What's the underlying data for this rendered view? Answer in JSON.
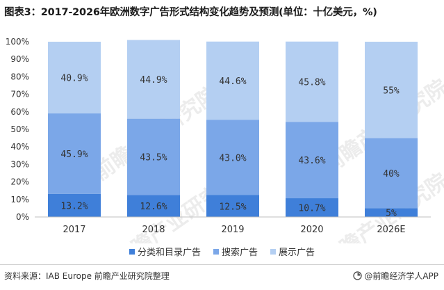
{
  "title": "图表3：2017-2026年欧洲数字广告形式结构变化趋势及预测(单位：十亿美元，%)",
  "chart_data": {
    "type": "bar",
    "stacked": true,
    "percent": true,
    "categories": [
      "2017",
      "2018",
      "2019",
      "2020",
      "2026E"
    ],
    "series": [
      {
        "name": "分类和目录广告",
        "color": "#3f7fd9",
        "values": [
          13.2,
          12.6,
          12.5,
          10.7,
          5
        ],
        "labels": [
          "13.2%",
          "12.6%",
          "12.5%",
          "10.7%",
          "5%"
        ]
      },
      {
        "name": "搜索广告",
        "color": "#7ba7e8",
        "values": [
          45.9,
          43.5,
          43.0,
          43.6,
          40
        ],
        "labels": [
          "45.9%",
          "43.5%",
          "43.0%",
          "43.6%",
          "40%"
        ]
      },
      {
        "name": "展示广告",
        "color": "#b4cff2",
        "values": [
          40.9,
          44.9,
          44.6,
          45.8,
          55
        ],
        "labels": [
          "40.9%",
          "44.9%",
          "44.6%",
          "45.8%",
          "55%"
        ]
      }
    ],
    "ylim": [
      0,
      100
    ],
    "yticks": [
      "0%",
      "10%",
      "20%",
      "30%",
      "40%",
      "50%",
      "60%",
      "70%",
      "80%",
      "90%",
      "100%"
    ],
    "grid": false,
    "legend_position": "bottom"
  },
  "source": "资料来源：IAB Europe 前瞻产业研究院整理",
  "brand": "@前瞻经济学人APP",
  "watermark": "前瞻产业研究院"
}
